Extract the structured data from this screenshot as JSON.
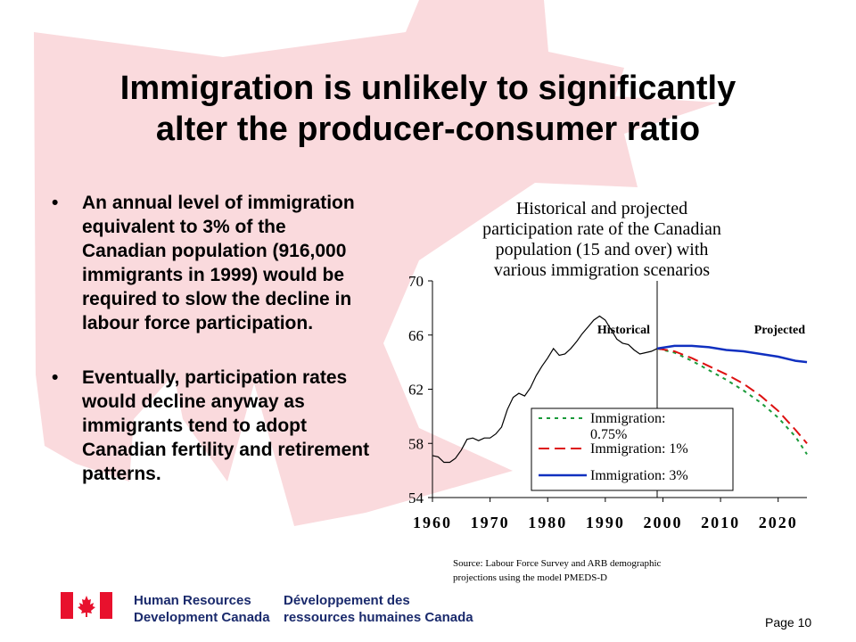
{
  "slide": {
    "title_line1": "Immigration is unlikely to significantly",
    "title_line2": "alter the producer-consumer ratio",
    "bullets": [
      {
        "text": "An annual level of immigration equivalent to 3% of the Canadian population (916,000 immigrants in 1999) would be required to slow the decline in labour force participation."
      },
      {
        "text": "Eventually, participation rates would decline anyway as immigrants tend to adopt Canadian fertility and retirement patterns."
      }
    ],
    "bullet_glyph": "•",
    "source_line1": "Source:  Labour Force Survey and ARB demographic",
    "source_line2": "projections using  the model PMEDS-D",
    "footer": {
      "en_line1": "Human Resources",
      "en_line2": "Development Canada",
      "fr_line1": "Développement des",
      "fr_line2": "ressources humaines Canada",
      "page": "Page 10"
    },
    "colors": {
      "maple_leaf": "#fadadd",
      "flag_red": "#e8112d",
      "dept_text": "#1a2a6c"
    }
  },
  "chart_data": {
    "type": "line",
    "title": [
      "Historical and projected",
      "participation rate of the Canadian",
      "population (15 and over) with",
      "various immigration scenarios"
    ],
    "xlim": [
      1960,
      2025
    ],
    "ylim": [
      54,
      70
    ],
    "x_ticks": [
      1960,
      1970,
      1980,
      1990,
      2000,
      2010,
      2020
    ],
    "y_ticks": [
      54,
      58,
      62,
      66,
      70
    ],
    "divider_x": 1999,
    "region_labels": {
      "left": "Historical",
      "right": "Projected"
    },
    "legend_position": "center-right",
    "series": [
      {
        "name": "Historical",
        "color": "#000000",
        "style": "solid",
        "in_legend": false,
        "points": [
          [
            1960,
            57.1
          ],
          [
            1961,
            57.0
          ],
          [
            1962,
            56.6
          ],
          [
            1963,
            56.6
          ],
          [
            1964,
            56.9
          ],
          [
            1965,
            57.5
          ],
          [
            1966,
            58.3
          ],
          [
            1967,
            58.4
          ],
          [
            1968,
            58.2
          ],
          [
            1969,
            58.4
          ],
          [
            1970,
            58.4
          ],
          [
            1971,
            58.7
          ],
          [
            1972,
            59.2
          ],
          [
            1973,
            60.5
          ],
          [
            1974,
            61.4
          ],
          [
            1975,
            61.7
          ],
          [
            1976,
            61.5
          ],
          [
            1977,
            62.1
          ],
          [
            1978,
            63.0
          ],
          [
            1979,
            63.7
          ],
          [
            1980,
            64.3
          ],
          [
            1981,
            65.0
          ],
          [
            1982,
            64.5
          ],
          [
            1983,
            64.6
          ],
          [
            1984,
            65.0
          ],
          [
            1985,
            65.5
          ],
          [
            1986,
            66.1
          ],
          [
            1987,
            66.6
          ],
          [
            1988,
            67.1
          ],
          [
            1989,
            67.4
          ],
          [
            1990,
            67.1
          ],
          [
            1991,
            66.4
          ],
          [
            1992,
            65.7
          ],
          [
            1993,
            65.4
          ],
          [
            1994,
            65.3
          ],
          [
            1995,
            64.9
          ],
          [
            1996,
            64.6
          ],
          [
            1997,
            64.7
          ],
          [
            1998,
            64.8
          ],
          [
            1999,
            65.0
          ]
        ]
      },
      {
        "name": "Immigration: 0.75%",
        "color": "#1a9a3a",
        "style": "dotted",
        "in_legend": true,
        "points": [
          [
            1999,
            65.0
          ],
          [
            2002,
            64.7
          ],
          [
            2005,
            64.1
          ],
          [
            2008,
            63.4
          ],
          [
            2011,
            62.7
          ],
          [
            2014,
            61.9
          ],
          [
            2017,
            61.0
          ],
          [
            2020,
            59.9
          ],
          [
            2023,
            58.5
          ],
          [
            2025,
            57.2
          ]
        ]
      },
      {
        "name": "Immigration: 1%",
        "color": "#dd1111",
        "style": "dashed",
        "in_legend": true,
        "points": [
          [
            1999,
            65.0
          ],
          [
            2002,
            64.8
          ],
          [
            2005,
            64.3
          ],
          [
            2008,
            63.7
          ],
          [
            2011,
            63.1
          ],
          [
            2014,
            62.4
          ],
          [
            2017,
            61.5
          ],
          [
            2020,
            60.4
          ],
          [
            2023,
            59.0
          ],
          [
            2025,
            58.0
          ]
        ]
      },
      {
        "name": "Immigration: 3%",
        "color": "#1030c0",
        "style": "solid",
        "in_legend": true,
        "points": [
          [
            1999,
            65.0
          ],
          [
            2002,
            65.2
          ],
          [
            2005,
            65.2
          ],
          [
            2008,
            65.1
          ],
          [
            2011,
            64.9
          ],
          [
            2014,
            64.8
          ],
          [
            2017,
            64.6
          ],
          [
            2020,
            64.4
          ],
          [
            2023,
            64.1
          ],
          [
            2025,
            64.0
          ]
        ]
      }
    ]
  }
}
